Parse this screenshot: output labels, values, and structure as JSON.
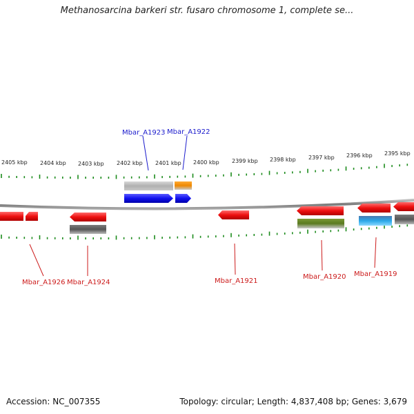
{
  "title": "Methanosarcina barkeri str. fusaro chromosome 1, complete se...",
  "footer": {
    "accession": "Accession: NC_007355",
    "topology": "Topology: circular; Length: 4,837,408 bp; Genes: 3,679"
  },
  "colors": {
    "backbone": "#8a8a8a",
    "tick": "#1a8a1a",
    "label_forward": "#1a1acc",
    "label_reverse": "#cc1a1a",
    "gene_forward": "#1010ee",
    "gene_reverse": "#ee1010",
    "feature_gray": "#aaaaaa",
    "feature_dark": "#555555",
    "feature_orange": "#ee8800",
    "feature_green": "#5a7a20",
    "feature_blue": "#2aa8e8"
  },
  "position_labels": [
    "2405 kbp",
    "2404 kbp",
    "2403 kbp",
    "2402 kbp",
    "2401 kbp",
    "2400 kbp",
    "2399 kbp",
    "2398 kbp",
    "2397 kbp",
    "2396 kbp",
    "2395 kbp"
  ],
  "gene_labels": {
    "Mbar_A1923": "Mbar_A1923",
    "Mbar_A1922": "Mbar_A1922",
    "Mbar_A1926": "Mbar_A1926",
    "Mbar_A1924": "Mbar_A1924",
    "Mbar_A1921": "Mbar_A1921",
    "Mbar_A1920": "Mbar_A1920",
    "Mbar_A1919": "Mbar_A1919"
  }
}
